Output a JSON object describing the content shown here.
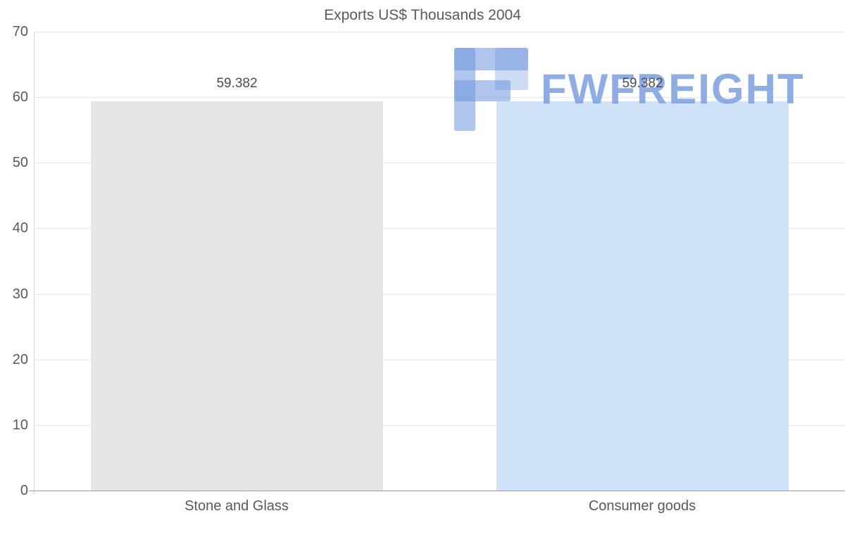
{
  "chart_data": {
    "type": "bar",
    "title": "Exports US$ Thousands 2004",
    "categories": [
      "Stone and Glass",
      "Consumer goods"
    ],
    "values": [
      59.382,
      59.382
    ],
    "value_labels": [
      "59.382",
      "59.382"
    ],
    "series": [
      {
        "name": "Exports US$ Thousands 2004",
        "values": [
          59.382,
          59.382
        ]
      }
    ],
    "bar_colors": [
      "#e6e6e6",
      "#cfe2f8"
    ],
    "ylim": [
      0,
      70
    ],
    "yticks": [
      0,
      10,
      20,
      30,
      40,
      50,
      60,
      70
    ],
    "grid": true,
    "legend": "none",
    "xlabel": "",
    "ylabel": ""
  },
  "watermark": {
    "text": "FWFREIGHT",
    "color": "#7a9de0"
  },
  "colors": {
    "text": "#595959",
    "gridline": "#e6e6e6",
    "axis": "#9b9b9b"
  }
}
